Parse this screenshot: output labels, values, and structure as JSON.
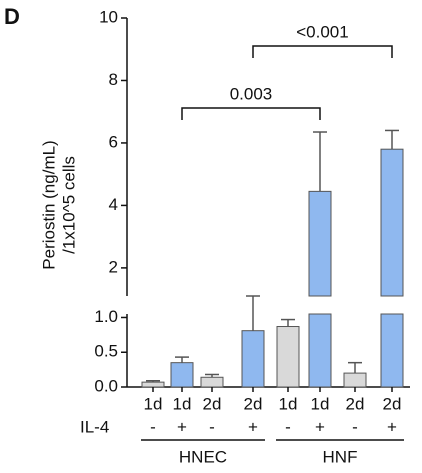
{
  "chart_data": {
    "type": "bar",
    "panel_label": "D",
    "y_label": [
      "Periostin (ng/mL)",
      "/1x10^5 cells"
    ],
    "categories": [
      "1d",
      "1d",
      "2d",
      "2d",
      "1d",
      "1d",
      "2d",
      "2d"
    ],
    "values": [
      0.07,
      0.35,
      0.14,
      0.81,
      0.87,
      4.45,
      0.2,
      5.8
    ],
    "errors": [
      0.02,
      0.08,
      0.04,
      0.29,
      0.1,
      1.9,
      0.15,
      0.6
    ],
    "colors": [
      "#d9d9d9",
      "#8fb8ef",
      "#d9d9d9",
      "#8fb8ef",
      "#d9d9d9",
      "#8fb8ef",
      "#d9d9d9",
      "#8fb8ef"
    ],
    "treatment_label": "IL-4",
    "treatment": [
      "-",
      "+",
      "-",
      "+",
      "-",
      "+",
      "-",
      "+"
    ],
    "groups": [
      "HNEC",
      "HNF"
    ],
    "annotations": [
      "0.003",
      "<0.001"
    ],
    "segments": [
      {
        "ylim": [
          0,
          1.05
        ],
        "yticks": [
          {
            "value": 0,
            "label": "0.0"
          },
          {
            "value": 0.5,
            "label": "0.5"
          },
          {
            "value": 1,
            "label": "1.0"
          }
        ]
      },
      {
        "ylim": [
          1.1,
          10
        ],
        "yticks": [
          2,
          4,
          6,
          8,
          10
        ]
      }
    ]
  }
}
